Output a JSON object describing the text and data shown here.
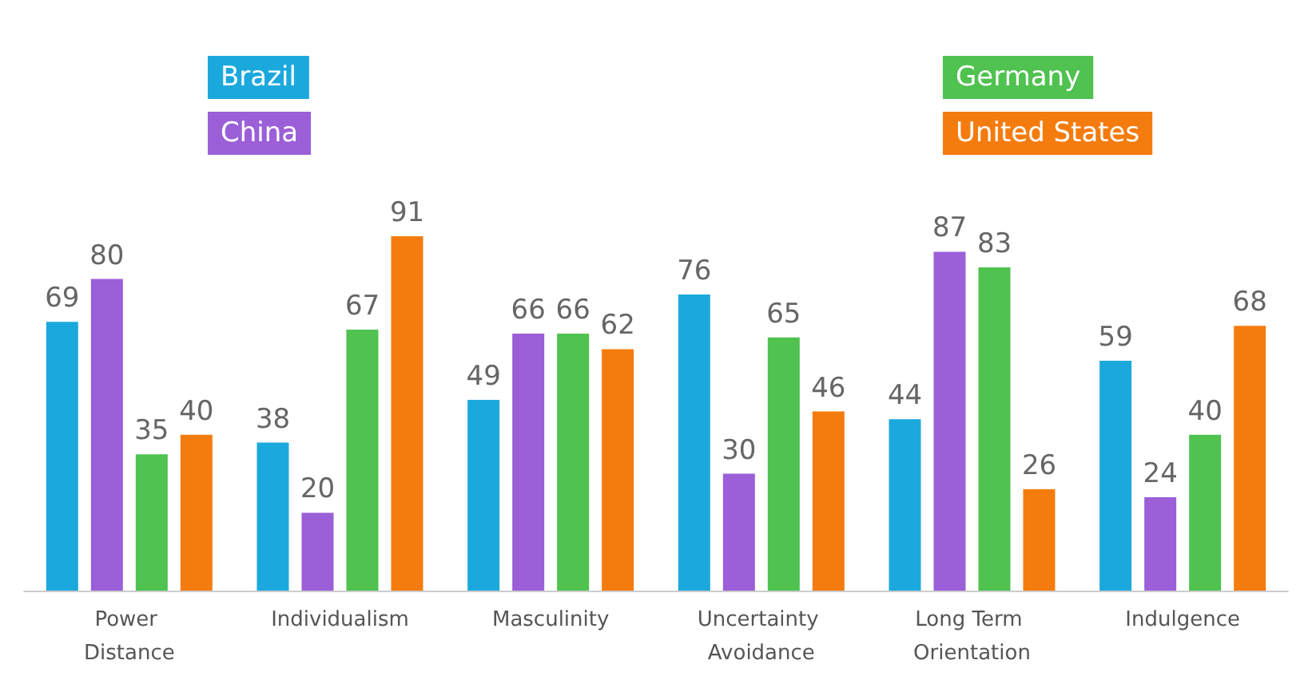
{
  "chart_data": {
    "type": "bar",
    "categories": [
      "Power Distance",
      "Individualism",
      "Masculinity",
      "Uncertainty Avoidance",
      "Long Term Orientation",
      "Indulgence"
    ],
    "series": [
      {
        "name": "Brazil",
        "color": "#1ba9dd",
        "values": [
          69,
          38,
          49,
          76,
          44,
          59
        ]
      },
      {
        "name": "China",
        "color": "#9b5fd8",
        "values": [
          80,
          20,
          66,
          30,
          87,
          24
        ]
      },
      {
        "name": "Germany",
        "color": "#4fc24f",
        "values": [
          35,
          67,
          66,
          65,
          83,
          40
        ]
      },
      {
        "name": "United States",
        "color": "#f47c0e",
        "values": [
          40,
          91,
          62,
          46,
          26,
          68
        ]
      }
    ],
    "data_labels": true,
    "grid": false,
    "legend": "top",
    "tick_labels": "x"
  }
}
